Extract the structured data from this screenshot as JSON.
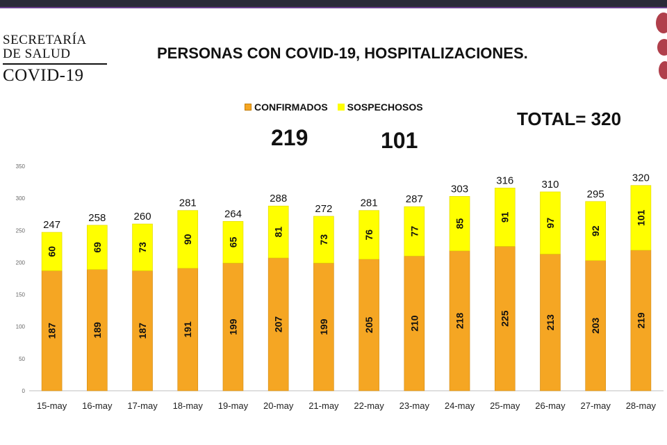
{
  "logo": {
    "line1": "SECRETARÍA",
    "line2": "DE SALUD",
    "line3": "COVID-19"
  },
  "header": {
    "title": "PERSONAS CON COVID-19, HOSPITALIZACIONES."
  },
  "legend": {
    "confirmed": "CONFIRMADOS",
    "suspected": "SOSPECHOSOS"
  },
  "summary": {
    "confirmed": "219",
    "suspected": "101",
    "total": "TOTAL= 320"
  },
  "colors": {
    "confirmed": "#f5a623",
    "suspected": "#ffff00",
    "text": "#111111",
    "axis": "#666666"
  },
  "chart_data": {
    "type": "bar",
    "stacked": true,
    "categories": [
      "15-may",
      "16-may",
      "17-may",
      "18-may",
      "19-may",
      "20-may",
      "21-may",
      "22-may",
      "23-may",
      "24-may",
      "25-may",
      "26-may",
      "27-may",
      "28-may"
    ],
    "series": [
      {
        "name": "CONFIRMADOS",
        "values": [
          187,
          189,
          187,
          191,
          199,
          207,
          199,
          205,
          210,
          218,
          225,
          213,
          203,
          219
        ]
      },
      {
        "name": "SOSPECHOSOS",
        "values": [
          60,
          69,
          73,
          90,
          65,
          81,
          73,
          76,
          77,
          85,
          91,
          97,
          92,
          101
        ]
      }
    ],
    "totals": [
      247,
      258,
      260,
      281,
      264,
      288,
      272,
      281,
      287,
      303,
      316,
      310,
      295,
      320
    ],
    "ylim": [
      0,
      350
    ],
    "yticks": [
      0,
      50,
      100,
      150,
      200,
      250,
      300,
      350
    ],
    "grid": false,
    "legend_position": "top"
  }
}
